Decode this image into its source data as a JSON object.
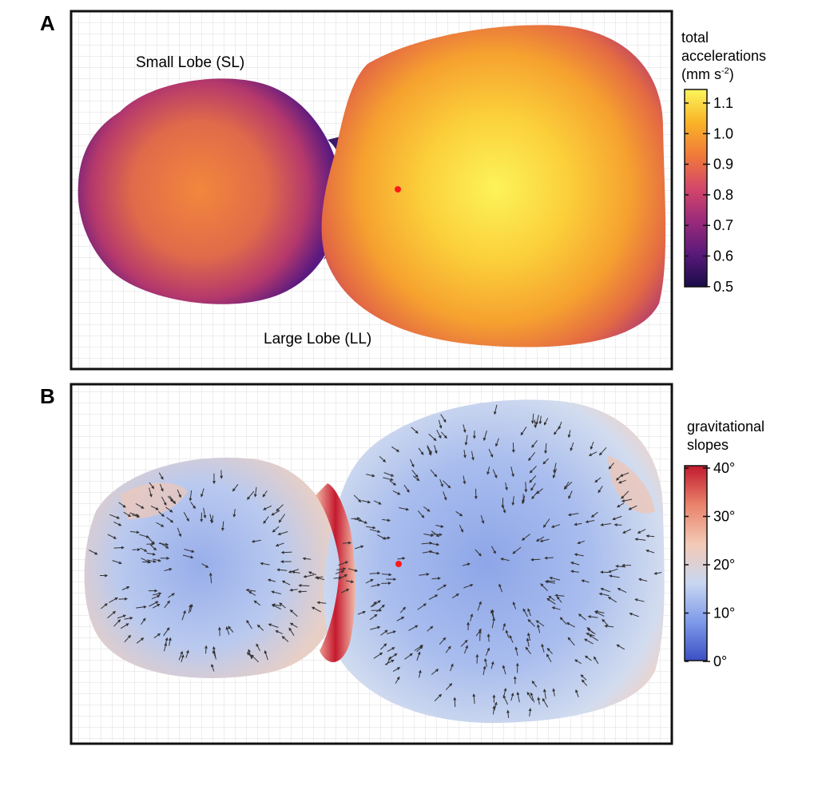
{
  "panels": [
    {
      "letter": "A",
      "labels": {
        "small_lobe": "Small Lobe (SL)",
        "large_lobe": "Large Lobe (LL)"
      },
      "colorbar": {
        "title_line1": "total",
        "title_line2": "accelerations",
        "title_line3_prefix": "(mm s",
        "title_line3_sup": "-2",
        "title_line3_suffix": ")",
        "ticks": [
          "1.1",
          "1.0",
          "0.9",
          "0.8",
          "0.7",
          "0.6",
          "0.5"
        ],
        "range": [
          0.5,
          1.15
        ],
        "colormap": [
          "#1a0b4a",
          "#5a1a7a",
          "#9a2a7a",
          "#d4476a",
          "#f07a3a",
          "#f9b427",
          "#fcf55c"
        ]
      },
      "marker_color": "#ff1a1a"
    },
    {
      "letter": "B",
      "colorbar": {
        "title_line1": "gravitational",
        "title_line2": "slopes",
        "ticks": [
          "40°",
          "30°",
          "20°",
          "10°",
          "0°"
        ],
        "range": [
          0,
          40
        ],
        "colormap": [
          "#3b4fc4",
          "#7f9bea",
          "#c9d7f0",
          "#f3c9b5",
          "#e9826a",
          "#c21a2e"
        ]
      },
      "marker_color": "#ff1a1a"
    }
  ]
}
